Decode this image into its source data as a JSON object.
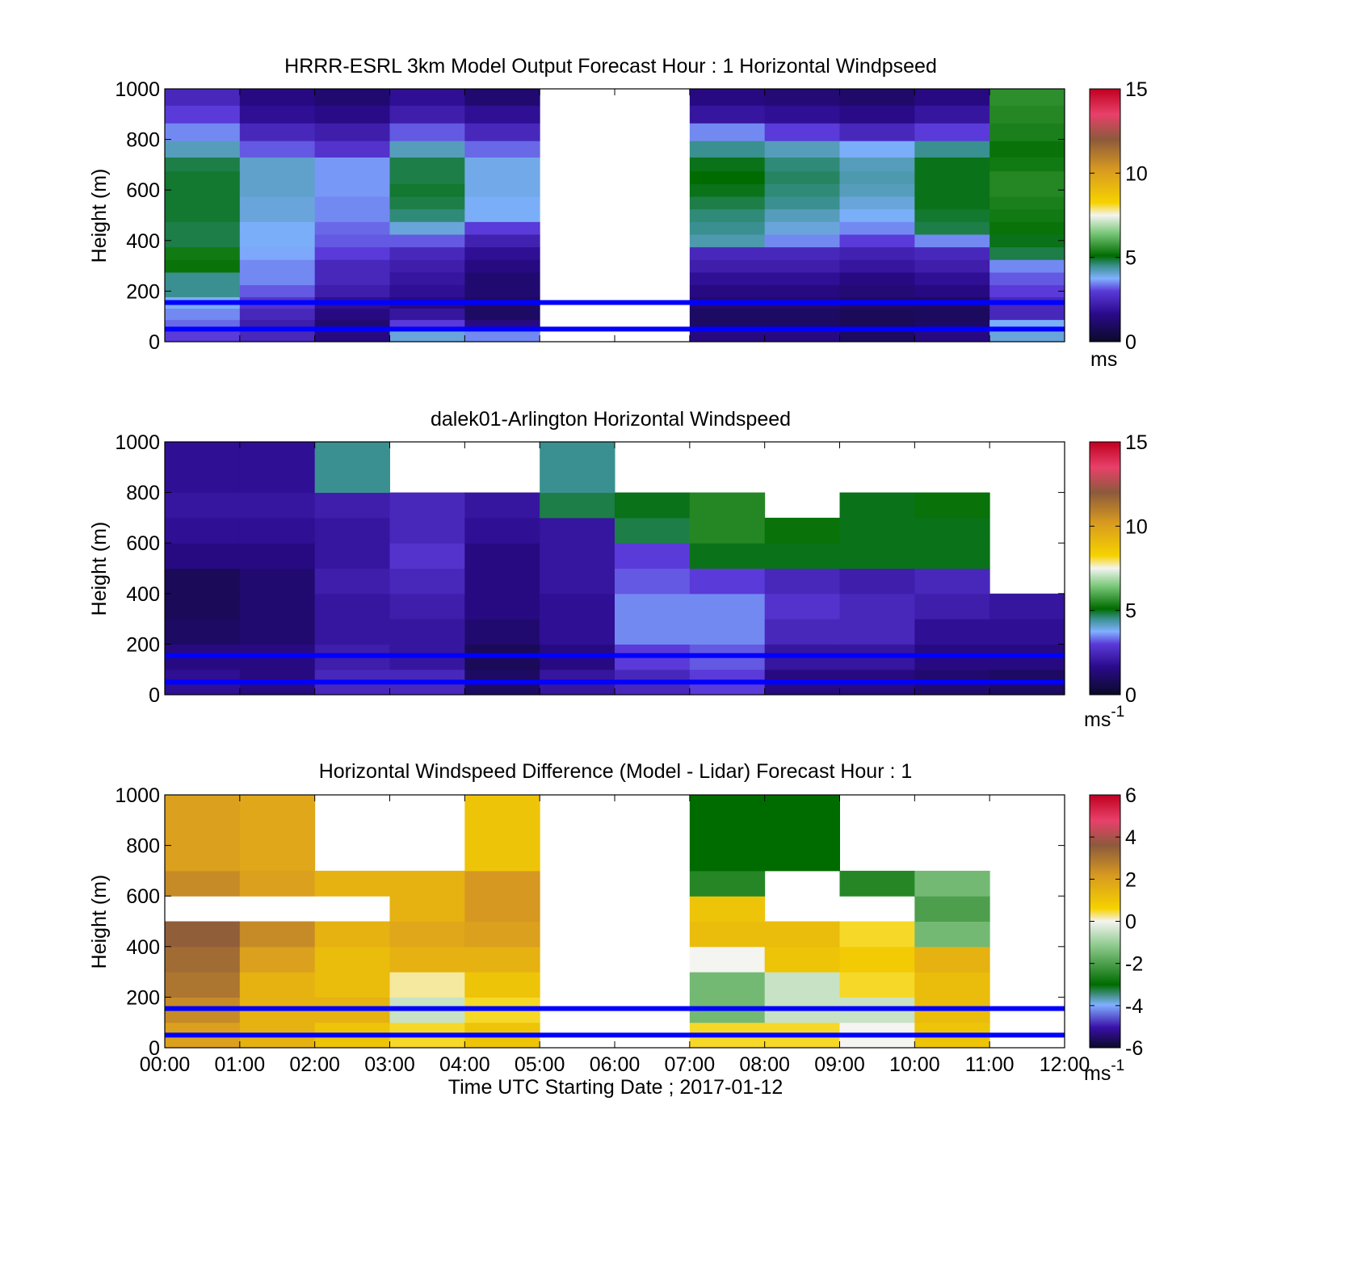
{
  "chart_data": [
    {
      "type": "heatmap",
      "title": "HRRR-ESRL 3km Model Output   Forecast Hour : 1 Horizontal Windpseed",
      "ylabel": "Height (m)",
      "xlim": [
        "00:00",
        "12:00"
      ],
      "ylim": [
        0,
        1000
      ],
      "yticks": [
        "0",
        "200",
        "400",
        "600",
        "800",
        "1000"
      ],
      "colorbar": {
        "range": [
          0,
          15
        ],
        "ticks": [
          "0",
          "5",
          "10",
          "15"
        ],
        "unit": "ms",
        "unit_sup": ""
      },
      "reference_lines_m": [
        50,
        155
      ],
      "heights_m": [
        25,
        65,
        110,
        155,
        200,
        250,
        300,
        350,
        400,
        450,
        500,
        550,
        600,
        650,
        700,
        760,
        830,
        900,
        970
      ],
      "times": [
        "00:00",
        "01:00",
        "02:00",
        "03:00",
        "04:00",
        "05:00",
        "06:00",
        "07:00",
        "08:00",
        "09:00",
        "10:00",
        "11:00"
      ],
      "missing_times": [
        "05:00",
        "06:00"
      ],
      "windspeed_ms": [
        [
          3.0,
          2.5,
          1.5,
          4.0,
          3.5,
          null,
          null,
          1.5,
          1.5,
          1.0,
          1.5,
          4.0
        ],
        [
          3.3,
          2.2,
          1.2,
          3.0,
          1.5,
          null,
          null,
          1.0,
          1.0,
          0.8,
          1.0,
          3.8
        ],
        [
          3.5,
          2.5,
          1.5,
          2.0,
          1.0,
          null,
          null,
          1.0,
          1.0,
          0.8,
          0.9,
          2.5
        ],
        [
          3.8,
          2.8,
          1.8,
          1.5,
          1.0,
          null,
          null,
          1.2,
          1.2,
          1.0,
          1.0,
          2.5
        ],
        [
          4.5,
          3.2,
          2.2,
          1.8,
          1.2,
          null,
          null,
          1.5,
          1.5,
          1.3,
          1.5,
          3.0
        ],
        [
          4.5,
          3.5,
          2.5,
          2.0,
          1.2,
          null,
          null,
          1.8,
          1.8,
          1.5,
          1.8,
          3.2
        ],
        [
          5.2,
          3.5,
          2.5,
          2.2,
          1.5,
          null,
          null,
          2.2,
          2.2,
          2.0,
          2.2,
          3.5
        ],
        [
          5.3,
          3.7,
          3.0,
          2.5,
          1.8,
          null,
          null,
          2.5,
          2.5,
          2.3,
          2.5,
          4.8
        ],
        [
          4.8,
          3.8,
          3.2,
          3.2,
          2.3,
          null,
          null,
          4.3,
          3.5,
          3.0,
          3.5,
          5.0
        ],
        [
          4.8,
          3.8,
          3.3,
          4.0,
          3.0,
          null,
          null,
          4.5,
          4.0,
          3.5,
          4.8,
          5.2
        ],
        [
          4.9,
          4.0,
          3.5,
          4.6,
          3.8,
          null,
          null,
          4.6,
          4.2,
          3.8,
          4.9,
          5.3
        ],
        [
          4.9,
          4.0,
          3.5,
          4.8,
          3.8,
          null,
          null,
          4.8,
          4.5,
          4.0,
          5.0,
          5.4
        ],
        [
          4.9,
          4.1,
          3.6,
          4.9,
          3.9,
          null,
          null,
          5.0,
          4.6,
          4.2,
          5.0,
          5.5
        ],
        [
          4.9,
          4.1,
          3.6,
          4.8,
          3.9,
          null,
          null,
          5.1,
          4.7,
          4.3,
          5.0,
          5.5
        ],
        [
          4.8,
          4.1,
          3.6,
          4.8,
          3.9,
          null,
          null,
          5.0,
          4.6,
          4.2,
          5.0,
          5.3
        ],
        [
          4.2,
          3.2,
          2.8,
          4.2,
          3.3,
          null,
          null,
          4.5,
          4.2,
          3.8,
          4.5,
          5.2
        ],
        [
          3.5,
          2.5,
          2.2,
          3.2,
          2.5,
          null,
          null,
          3.5,
          3.0,
          2.5,
          3.0,
          5.4
        ],
        [
          3.0,
          1.8,
          1.6,
          2.2,
          1.8,
          null,
          null,
          2.0,
          1.8,
          1.6,
          2.0,
          5.5
        ],
        [
          2.5,
          1.5,
          1.2,
          1.8,
          1.2,
          null,
          null,
          1.5,
          1.3,
          1.1,
          1.5,
          5.6
        ]
      ]
    },
    {
      "type": "heatmap",
      "title": "dalek01-Arlington  Horizontal Windspeed",
      "ylabel": "Height (m)",
      "xlim": [
        "00:00",
        "12:00"
      ],
      "ylim": [
        0,
        1000
      ],
      "yticks": [
        "0",
        "200",
        "400",
        "600",
        "800",
        "1000"
      ],
      "colorbar": {
        "range": [
          0,
          15
        ],
        "ticks": [
          "0",
          "5",
          "10",
          "15"
        ],
        "unit": "ms",
        "unit_sup": "-1"
      },
      "reference_lines_m": [
        50,
        155
      ],
      "heights_m": [
        50,
        150,
        250,
        350,
        450,
        550,
        650,
        750,
        850
      ],
      "times": [
        "00:00",
        "01:00",
        "02:00",
        "03:00",
        "04:00",
        "05:00",
        "06:00",
        "07:00",
        "08:00",
        "09:00",
        "10:00",
        "11:00"
      ],
      "windspeed_ms": [
        [
          1.8,
          1.5,
          2.5,
          2.5,
          1.0,
          2.0,
          2.5,
          3.0,
          1.5,
          1.5,
          1.2,
          1.0
        ],
        [
          1.5,
          1.5,
          2.2,
          2.0,
          0.8,
          1.5,
          3.0,
          3.2,
          2.0,
          2.0,
          1.5,
          1.5
        ],
        [
          1.0,
          1.2,
          2.0,
          2.0,
          1.2,
          1.8,
          3.5,
          3.5,
          2.5,
          2.5,
          1.8,
          1.8
        ],
        [
          0.8,
          1.2,
          2.0,
          2.2,
          1.5,
          1.8,
          3.5,
          3.5,
          2.8,
          2.5,
          2.2,
          2.0
        ],
        [
          0.8,
          1.2,
          2.2,
          2.5,
          1.5,
          2.0,
          3.2,
          3.0,
          2.5,
          2.2,
          2.5,
          null
        ],
        [
          1.5,
          1.5,
          2.0,
          2.8,
          1.5,
          2.0,
          3.0,
          5.0,
          5.0,
          5.0,
          5.0,
          null
        ],
        [
          1.8,
          1.8,
          2.0,
          2.5,
          1.8,
          2.0,
          4.8,
          5.5,
          5.2,
          5.0,
          5.0,
          null
        ],
        [
          2.0,
          2.0,
          2.2,
          2.5,
          2.0,
          4.8,
          5.0,
          5.5,
          null,
          5.0,
          5.2,
          null
        ],
        [
          1.8,
          1.8,
          4.5,
          null,
          null,
          4.5,
          null,
          null,
          null,
          null,
          null,
          null
        ]
      ]
    },
    {
      "type": "heatmap",
      "title": "Horizontal Windspeed Difference (Model - Lidar) Forecast Hour : 1",
      "xlabel": "Time UTC  Starting Date ; 2017-01-12",
      "ylabel": "Height (m)",
      "xticks": [
        "00:00",
        "01:00",
        "02:00",
        "03:00",
        "04:00",
        "05:00",
        "06:00",
        "07:00",
        "08:00",
        "09:00",
        "10:00",
        "11:00",
        "12:00"
      ],
      "ylim": [
        0,
        1000
      ],
      "yticks": [
        "0",
        "200",
        "400",
        "600",
        "800",
        "1000"
      ],
      "colorbar": {
        "range": [
          -6,
          6
        ],
        "ticks": [
          "-6",
          "-4",
          "-2",
          "0",
          "2",
          "4",
          "6"
        ],
        "unit": "ms",
        "unit_sup": "-1"
      },
      "reference_lines_m": [
        50,
        155
      ],
      "heights_m": [
        50,
        150,
        250,
        350,
        450,
        550,
        650,
        750
      ],
      "times": [
        "00:00",
        "01:00",
        "02:00",
        "03:00",
        "04:00",
        "05:00",
        "06:00",
        "07:00",
        "08:00",
        "09:00",
        "10:00",
        "11:00"
      ],
      "difference_ms": [
        [
          2.0,
          1.5,
          1.0,
          0.5,
          1.0,
          null,
          null,
          0.5,
          0.5,
          0.0,
          1.0,
          null
        ],
        [
          2.5,
          1.5,
          1.5,
          -0.5,
          0.5,
          null,
          null,
          -1.5,
          -0.5,
          -0.5,
          1.2,
          null
        ],
        [
          3.0,
          1.5,
          1.2,
          0.2,
          1.0,
          null,
          null,
          -1.5,
          -0.5,
          0.5,
          1.2,
          null
        ],
        [
          3.2,
          2.0,
          1.2,
          1.5,
          1.5,
          null,
          null,
          0.0,
          1.0,
          0.8,
          1.5,
          null
        ],
        [
          3.5,
          2.5,
          1.5,
          1.8,
          2.0,
          null,
          null,
          1.2,
          1.2,
          0.5,
          -1.5,
          null
        ],
        [
          null,
          null,
          null,
          1.5,
          2.2,
          null,
          null,
          1.0,
          null,
          null,
          -2.0,
          null
        ],
        [
          2.5,
          2.0,
          1.5,
          1.5,
          2.2,
          null,
          null,
          -2.5,
          null,
          -2.5,
          -1.5,
          null
        ],
        [
          2.0,
          1.8,
          null,
          null,
          1.0,
          null,
          null,
          -3.0,
          -3.0,
          null,
          null,
          null
        ]
      ]
    }
  ]
}
